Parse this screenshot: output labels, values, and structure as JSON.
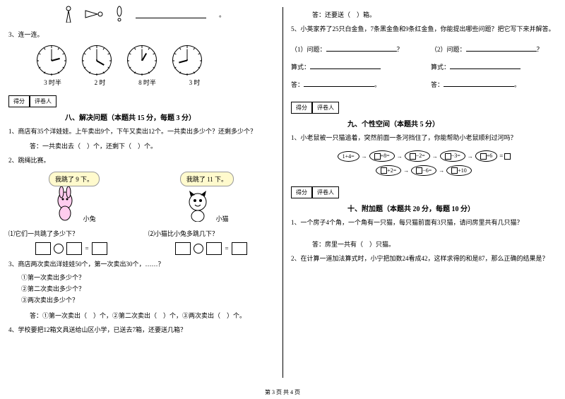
{
  "footer": "第 3 页 共 4 页",
  "left": {
    "q3_label": "3、连一连。",
    "clock_times": [
      "3 时半",
      "2 时",
      "8 时半",
      "3 时"
    ],
    "clock_hands": [
      {
        "h": -15,
        "m": -90
      },
      {
        "h": 30,
        "m": -90
      },
      {
        "h": -60,
        "m": -90
      },
      {
        "h": 165,
        "m": -90
      }
    ],
    "score_labels": [
      "得分",
      "评卷人"
    ],
    "section8_title": "八、解决问题（本题共 15 分，每题 3 分）",
    "q8_1": "1、商店有35个洋娃娃。上午卖出9个，下午又卖出12个。一共卖出多少个？还剩多少个？",
    "q8_1_ans": "答：一共卖出去（　）个，还剩下（　）个。",
    "q8_2": "2、跳绳比赛。",
    "bubble_rabbit": "我跳了 9 下。",
    "bubble_cat": "我跳了 11 下。",
    "label_rabbit": "小兔",
    "label_cat": "小猫",
    "q8_2_sub1": "⑴它们一共跳了多少下？",
    "q8_2_sub2": "⑵小猫比小兔多跳几下？",
    "q8_3": "3、商店两次卖出洋娃娃50个，第一次卖出30个，……？",
    "q8_3_a": "①第一次卖出多少个？",
    "q8_3_b": "②第二次卖出多少个？",
    "q8_3_c": "③两次卖出多少个？",
    "q8_3_ans": "答：①第一次卖出（　）个，②第二次卖出（　）个，③两次卖出（　）个。",
    "q8_4": "4、学校要把12箱文具送给山区小学，已送去7箱，还要送几箱？"
  },
  "right": {
    "q8_4_ans": "答：还要送（　）箱。",
    "q8_5": "5、小英家养了25只白金鱼，7条黑金鱼和9条红金鱼，你能提出哪些问题？把它写下来并解答。",
    "q8_5_p1": "（1）问题：",
    "q8_5_p2": "（2）问题：",
    "q8_5_eq": "算式：",
    "q8_5_ans": "答：",
    "score_labels": [
      "得分",
      "评卷人"
    ],
    "section9_title": "九、个性空间（本题共 5 分）",
    "q9_1": "1、小老鼠被一只猫追着，突然前面一条河挡住了，你能帮助小老鼠顺利过河吗？",
    "chain_start": "1+4=",
    "chain_ops": [
      "□+8=",
      "□−2=",
      "□−3=",
      "□+6",
      "□+2=",
      "□−6=",
      "□+10"
    ],
    "section10_title": "十、附加题（本题共 20 分，每题 10 分）",
    "q10_1": "1、一个房子4个角，一个角有一只猫，每只猫前面有3只猫，请问房里共有几只猫？",
    "q10_1_ans": "答：房里一共有（　）只猫。",
    "q10_2": "2、在计算一道加法算式时，小宁把加数24看成42，这样求得的和是87，那么正确的结果是？"
  },
  "colors": {
    "bubble_bg": "#fffacd",
    "text": "#000000",
    "bg": "#ffffff"
  }
}
